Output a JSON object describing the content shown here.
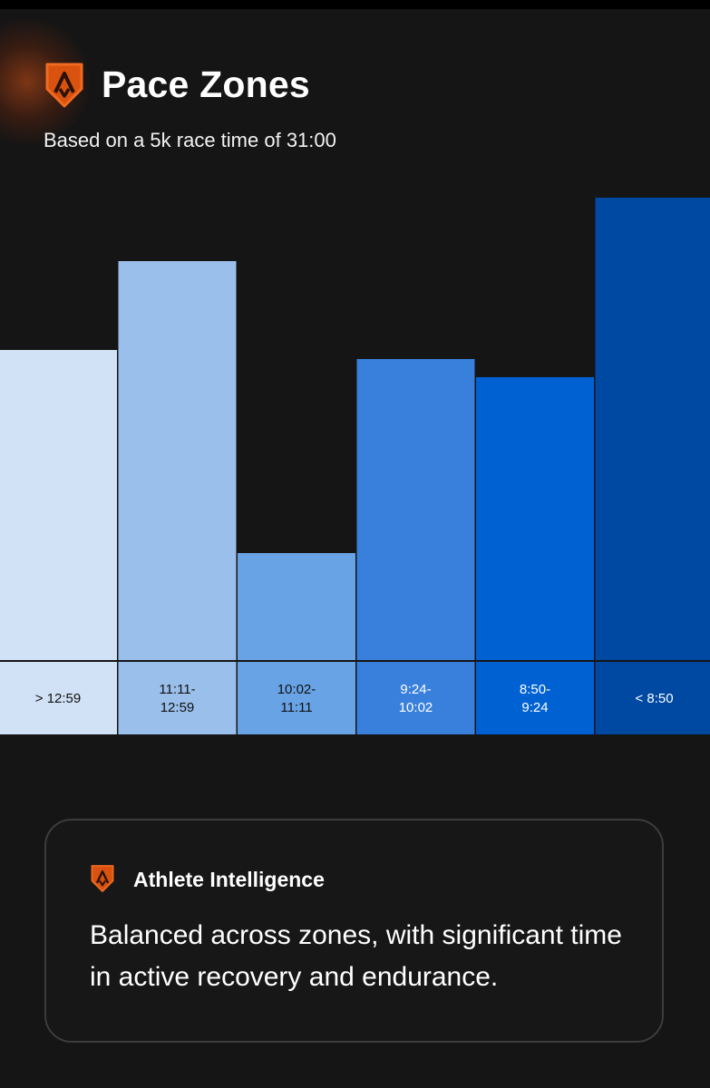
{
  "header": {
    "title": "Pace Zones",
    "subtitle": "Based on a 5k race time of 31:00",
    "icon": "strava-shield-icon",
    "accent_color": "#FC4C02"
  },
  "chart_data": {
    "type": "bar",
    "categories": [
      "> 12:59",
      "11:11-\n12:59",
      "10:02-\n11:11",
      "9:24-\n10:02",
      "8:50-\n9:24",
      "< 8:50"
    ],
    "values": [
      342,
      440,
      118,
      332,
      312,
      510
    ],
    "colors": [
      "#D1E2F6",
      "#9ABFEA",
      "#68A3E6",
      "#3980DC",
      "#0062D2",
      "#0049A2"
    ],
    "label_colors": [
      "#111111",
      "#111111",
      "#111111",
      "#ffffff",
      "#ffffff",
      "#ffffff"
    ],
    "title": "",
    "xlabel": "",
    "ylabel": "",
    "ylim": [
      0,
      510
    ],
    "grid": false,
    "legend": "none"
  },
  "insight_card": {
    "icon": "strava-shield-icon",
    "title": "Athlete Intelligence",
    "body": "Balanced across zones, with significant time in active recovery and endurance."
  }
}
